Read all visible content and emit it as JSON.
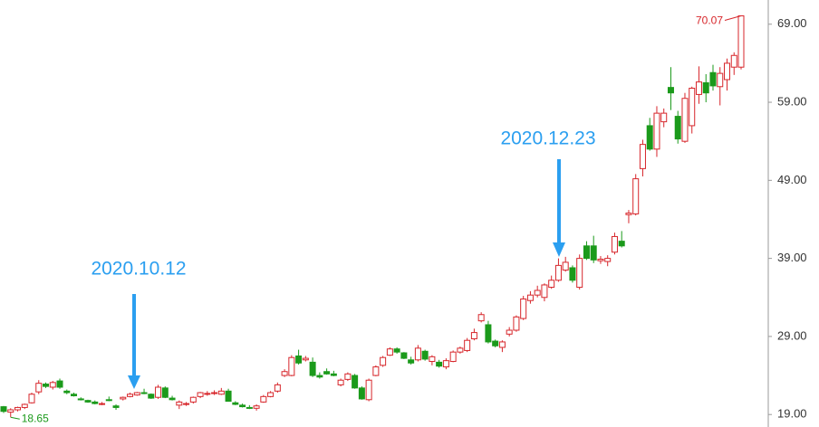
{
  "chart_data": {
    "type": "candlestick",
    "up_color": "#d7262b",
    "down_color": "#1b9a1b",
    "annotations": [
      "2020.10.12",
      "2020.12.23"
    ],
    "open": [
      20.0,
      19.3,
      19.6,
      19.9,
      20.5,
      21.9,
      22.9,
      22.5,
      23.3,
      22.0,
      21.6,
      21.0,
      20.8,
      20.6,
      20.3,
      20.9,
      20.1,
      21.0,
      21.3,
      21.5,
      21.8,
      21.6,
      21.2,
      22.4,
      21.1,
      20.2,
      20.3,
      20.6,
      21.3,
      21.6,
      21.7,
      21.6,
      22.0,
      20.5,
      20.2,
      19.9,
      19.8,
      20.6,
      21.3,
      22.0,
      24.0,
      24.0,
      26.5,
      26.0,
      25.7,
      24.0,
      24.5,
      24.2,
      22.8,
      23.5,
      24.0,
      22.4,
      20.9,
      24.0,
      25.3,
      26.6,
      27.4,
      26.9,
      26.0,
      26.0,
      27.1,
      25.8,
      25.7,
      25.1,
      25.8,
      27.0,
      27.2,
      28.7,
      31.0,
      30.5,
      28.4,
      27.6,
      29.3,
      29.8,
      31.3,
      33.6,
      34.3,
      34.0,
      35.3,
      36.2,
      37.5,
      37.8,
      35.3,
      40.6,
      40.6,
      38.7,
      38.6,
      39.8,
      41.2,
      44.6,
      44.7,
      50.5,
      56.0,
      53.0,
      56.5,
      60.9,
      57.2,
      54.0,
      56.0,
      60.0,
      61.5,
      62.8,
      61.0,
      61.9,
      63.5,
      63.5
    ],
    "high": [
      20.1,
      19.8,
      20.0,
      20.4,
      21.8,
      23.4,
      23.1,
      23.3,
      23.6,
      22.2,
      21.8,
      21.2,
      20.9,
      20.8,
      20.6,
      21.3,
      20.3,
      21.3,
      21.8,
      21.9,
      22.3,
      21.7,
      22.8,
      22.6,
      21.4,
      20.8,
      20.6,
      21.3,
      21.9,
      22.0,
      22.1,
      22.4,
      22.3,
      20.7,
      20.4,
      20.2,
      20.3,
      21.5,
      22.0,
      23.1,
      24.8,
      26.6,
      27.3,
      26.5,
      26.3,
      24.4,
      24.9,
      24.6,
      23.6,
      24.4,
      24.2,
      22.6,
      23.6,
      25.3,
      26.5,
      27.6,
      27.6,
      27.0,
      26.4,
      27.9,
      27.3,
      26.6,
      26.0,
      26.2,
      27.2,
      27.7,
      28.8,
      30.0,
      32.1,
      31.0,
      28.6,
      28.5,
      30.2,
      31.7,
      34.2,
      34.8,
      35.5,
      35.8,
      36.8,
      39.0,
      39.2,
      38.1,
      39.5,
      41.2,
      41.9,
      39.3,
      39.4,
      42.3,
      42.5,
      45.2,
      49.8,
      54.2,
      57.0,
      58.5,
      58.2,
      63.5,
      57.9,
      60.2,
      61.0,
      63.6,
      62.6,
      63.8,
      63.5,
      64.6,
      65.4,
      70.07
    ],
    "low": [
      19.2,
      18.65,
      19.4,
      19.7,
      20.4,
      21.6,
      22.4,
      22.2,
      22.3,
      21.6,
      21.3,
      20.8,
      20.5,
      20.3,
      20.2,
      20.7,
      19.6,
      20.8,
      21.2,
      21.4,
      21.6,
      21.0,
      21.0,
      21.1,
      20.8,
      19.7,
      20.1,
      20.4,
      21.1,
      21.4,
      21.5,
      21.5,
      20.7,
      20.2,
      19.9,
      19.7,
      19.5,
      20.5,
      21.2,
      21.8,
      23.8,
      23.9,
      25.4,
      25.8,
      23.8,
      23.6,
      24.1,
      23.9,
      22.6,
      23.3,
      22.3,
      20.9,
      20.7,
      23.9,
      25.1,
      26.5,
      26.8,
      26.1,
      25.4,
      25.8,
      25.9,
      25.3,
      25.0,
      24.8,
      25.7,
      26.8,
      27.0,
      28.5,
      30.8,
      28.1,
      27.6,
      27.0,
      29.0,
      29.6,
      31.1,
      33.2,
      34.0,
      33.5,
      35.1,
      36.0,
      37.3,
      35.9,
      35.0,
      38.8,
      38.4,
      38.3,
      38.0,
      39.5,
      40.4,
      43.5,
      44.5,
      49.5,
      52.8,
      52.0,
      55.8,
      58.0,
      53.7,
      53.8,
      55.0,
      58.8,
      59.0,
      60.5,
      58.6,
      60.5,
      62.5,
      63.2
    ],
    "close": [
      19.4,
      19.6,
      19.9,
      20.3,
      21.6,
      23.0,
      22.6,
      23.1,
      22.5,
      21.8,
      21.4,
      20.9,
      20.6,
      20.4,
      20.4,
      20.8,
      19.9,
      21.2,
      21.6,
      21.8,
      21.7,
      21.1,
      22.5,
      21.2,
      20.9,
      20.6,
      20.4,
      21.2,
      21.8,
      21.7,
      21.8,
      22.0,
      20.7,
      20.3,
      20.0,
      19.8,
      20.1,
      21.3,
      21.8,
      22.8,
      24.5,
      26.3,
      25.6,
      26.2,
      24.0,
      23.8,
      24.2,
      24.0,
      23.4,
      24.2,
      22.4,
      21.0,
      23.4,
      25.1,
      26.3,
      27.4,
      27.0,
      26.2,
      25.6,
      27.5,
      26.1,
      26.4,
      25.2,
      25.9,
      27.0,
      27.5,
      28.5,
      29.5,
      31.8,
      28.3,
      27.8,
      28.3,
      29.8,
      31.5,
      33.8,
      34.3,
      34.9,
      35.6,
      36.2,
      38.1,
      38.5,
      36.2,
      39.0,
      39.0,
      38.8,
      38.9,
      39.0,
      41.8,
      40.6,
      44.8,
      49.2,
      53.6,
      53.0,
      57.6,
      57.6,
      60.2,
      54.3,
      59.5,
      60.8,
      61.6,
      60.2,
      61.1,
      62.7,
      64.0,
      65.0,
      70.07
    ],
    "ylim": [
      17.4,
      72.1
    ],
    "yticks": [
      {
        "value": 19,
        "label": "19.00"
      },
      {
        "value": 29,
        "label": "29.00"
      },
      {
        "value": 39,
        "label": "39.00"
      },
      {
        "value": 49,
        "label": "49.00"
      },
      {
        "value": 59,
        "label": "59.00"
      },
      {
        "value": 69,
        "label": "69.00"
      }
    ]
  }
}
